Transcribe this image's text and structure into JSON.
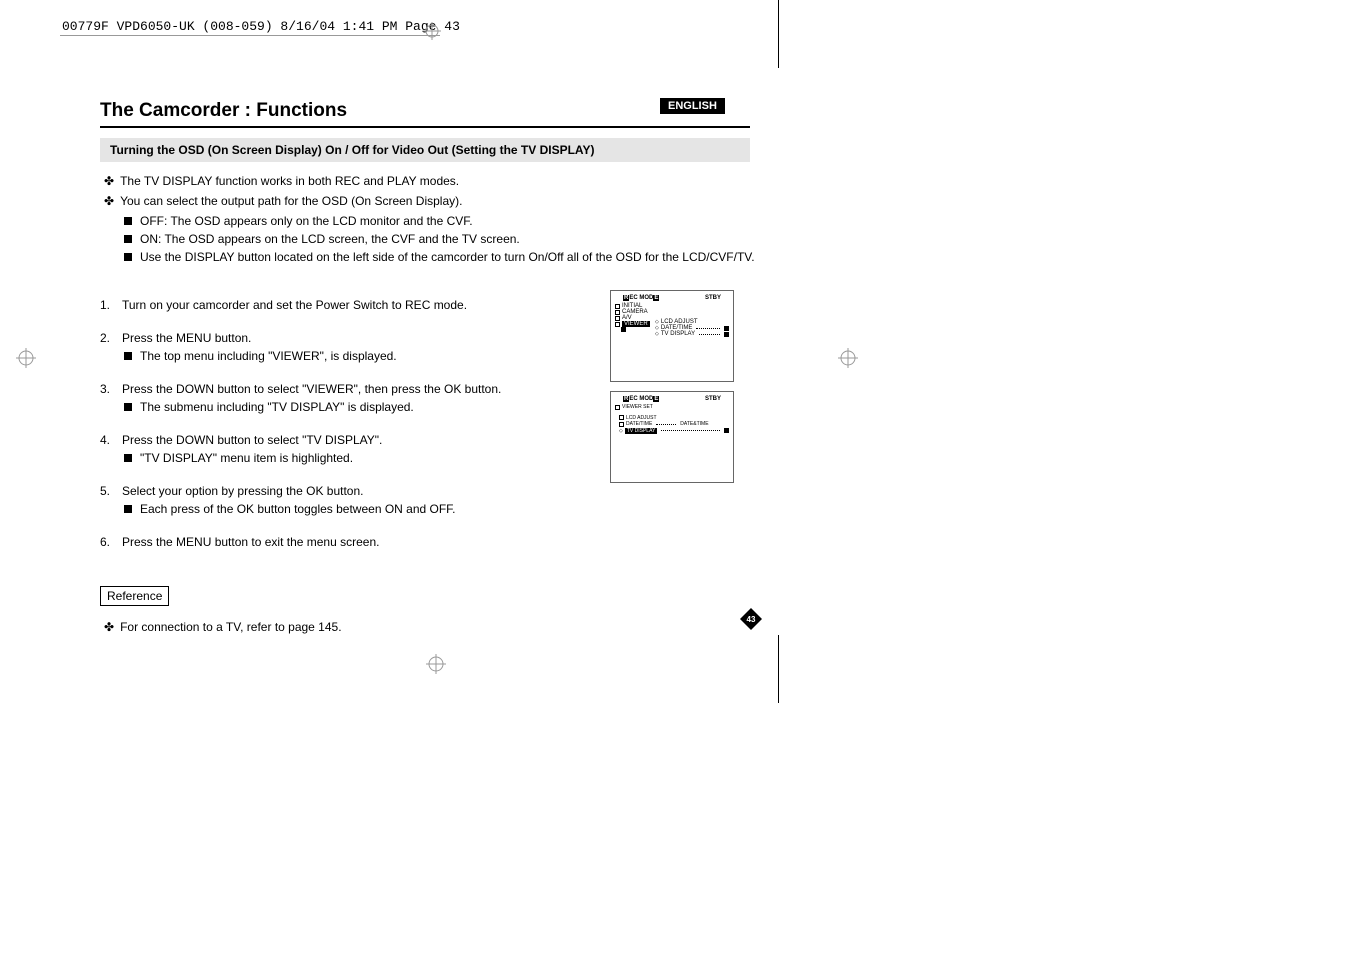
{
  "header_meta": "00779F VPD6050-UK (008-059)  8/16/04 1:41 PM  Page 43",
  "lang_badge": "ENGLISH",
  "title": "The Camcorder : Functions",
  "subtitle": "Turning the OSD (On Screen Display) On / Off for Video Out (Setting the TV DISPLAY)",
  "bullets": [
    "The TV DISPLAY function works in both REC and PLAY modes.",
    "You can select the output path for the OSD (On Screen Display)."
  ],
  "sub_bullets": [
    "OFF: The OSD appears only on the LCD monitor and the CVF.",
    "ON: The OSD appears on the LCD screen, the CVF and the TV screen.",
    "Use the DISPLAY button located on the left side of the camcorder to turn On/Off all of the OSD for the LCD/CVF/TV."
  ],
  "steps": [
    {
      "num": "1.",
      "text": "Turn on your camcorder and set the Power Switch to REC mode.",
      "subs": []
    },
    {
      "num": "2.",
      "text": "Press the MENU button.",
      "subs": [
        "The top menu including \"VIEWER\", is displayed."
      ]
    },
    {
      "num": "3.",
      "text": "Press the DOWN button to select \"VIEWER\", then press the OK button.",
      "subs": [
        "The submenu including \"TV DISPLAY\" is displayed."
      ]
    },
    {
      "num": "4.",
      "text": "Press the DOWN button to select \"TV DISPLAY\".",
      "subs": [
        "\"TV DISPLAY\" menu item is highlighted."
      ]
    },
    {
      "num": "5.",
      "text": "Select your option by pressing the OK button.",
      "subs": [
        "Each press of the OK button toggles between ON and OFF."
      ]
    },
    {
      "num": "6.",
      "text": "Press the MENU button to exit the menu screen.",
      "subs": []
    }
  ],
  "reference_label": "Reference",
  "reference_text": "For connection to a TV, refer to page 145.",
  "page_number": "43",
  "screen1": {
    "mode": "REC MODE",
    "status": "STBY",
    "left_items": [
      "INITIAL",
      "CAMERA",
      "A/V",
      "VIEWER"
    ],
    "right_items": [
      "LCD ADJUST",
      "DATE/TIME",
      "TV DISPLAY"
    ]
  },
  "screen2": {
    "mode": "REC MODE",
    "status": "STBY",
    "set_label": "VIEWER SET",
    "items": [
      {
        "label": "LCD ADJUST",
        "value": ""
      },
      {
        "label": "DATE/TIME",
        "value": "DATE&TIME"
      },
      {
        "label": "TV DISPLAY",
        "value": ""
      }
    ]
  },
  "colors": {
    "black": "#000000",
    "white": "#ffffff",
    "gray_bg": "#e5e5e5",
    "crop_gray": "#999999"
  }
}
